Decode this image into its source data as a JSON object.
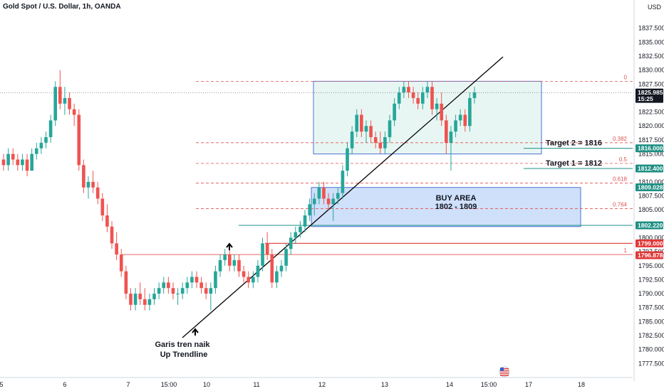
{
  "title": "Gold Spot / U.S. Dollar, 1h, OANDA",
  "currency": "USD",
  "chart_data": {
    "type": "candlestick",
    "ylim": [
      1775,
      1840
    ],
    "y_ticks": [
      "1837.500",
      "1835.000",
      "1832.500",
      "1830.000",
      "1827.500",
      "1822.500",
      "1820.000",
      "1817.500",
      "1815.000",
      "1810.000",
      "1807.500",
      "1805.000",
      "1800.000",
      "1797.500",
      "1795.000",
      "1792.500",
      "1790.000",
      "1787.500",
      "1785.000",
      "1782.500",
      "1780.000",
      "1777.500"
    ],
    "x_ticks": [
      "5",
      "6",
      "7",
      "15:00",
      "10",
      "11",
      "12",
      "13",
      "14",
      "15:00",
      "17",
      "18"
    ],
    "current_price": {
      "value": "1825.985",
      "time": "15:25"
    },
    "candles": [
      [
        1814,
        1815,
        1812,
        1813
      ],
      [
        1813,
        1816,
        1812,
        1815
      ],
      [
        1815,
        1816,
        1813,
        1814
      ],
      [
        1814,
        1815,
        1812,
        1813
      ],
      [
        1813,
        1815,
        1812,
        1814
      ],
      [
        1814,
        1815,
        1811,
        1812
      ],
      [
        1812,
        1816,
        1812,
        1815
      ],
      [
        1815,
        1817,
        1814,
        1816
      ],
      [
        1816,
        1818,
        1815,
        1817
      ],
      [
        1817,
        1819,
        1816,
        1818
      ],
      [
        1818,
        1822,
        1817,
        1821
      ],
      [
        1821,
        1828,
        1820,
        1827
      ],
      [
        1827,
        1830,
        1823,
        1824
      ],
      [
        1824,
        1827,
        1822,
        1825
      ],
      [
        1825,
        1826,
        1822,
        1823
      ],
      [
        1823,
        1824,
        1820,
        1822
      ],
      [
        1822,
        1823,
        1812,
        1813
      ],
      [
        1813,
        1814,
        1808,
        1809
      ],
      [
        1809,
        1811,
        1807,
        1810
      ],
      [
        1810,
        1812,
        1808,
        1809
      ],
      [
        1809,
        1810,
        1806,
        1807
      ],
      [
        1807,
        1808,
        1803,
        1804
      ],
      [
        1804,
        1806,
        1801,
        1802
      ],
      [
        1802,
        1803,
        1798,
        1799
      ],
      [
        1799,
        1801,
        1796,
        1797
      ],
      [
        1797,
        1798,
        1793,
        1794
      ],
      [
        1794,
        1795,
        1789,
        1790
      ],
      [
        1790,
        1791,
        1787,
        1788
      ],
      [
        1788,
        1791,
        1787,
        1790
      ],
      [
        1790,
        1792,
        1788,
        1789
      ],
      [
        1789,
        1791,
        1787,
        1788
      ],
      [
        1788,
        1790,
        1787,
        1789
      ],
      [
        1789,
        1791,
        1788,
        1790
      ],
      [
        1790,
        1792,
        1789,
        1791
      ],
      [
        1791,
        1793,
        1790,
        1792
      ],
      [
        1792,
        1793,
        1790,
        1791
      ],
      [
        1791,
        1792,
        1789,
        1790
      ],
      [
        1790,
        1791,
        1788,
        1790
      ],
      [
        1790,
        1792,
        1789,
        1791
      ],
      [
        1791,
        1793,
        1790,
        1792
      ],
      [
        1792,
        1794,
        1791,
        1793
      ],
      [
        1793,
        1794,
        1791,
        1792
      ],
      [
        1792,
        1793,
        1790,
        1791
      ],
      [
        1791,
        1792,
        1789,
        1790
      ],
      [
        1790,
        1792,
        1787,
        1791
      ],
      [
        1791,
        1795,
        1790,
        1794
      ],
      [
        1794,
        1797,
        1793,
        1796
      ],
      [
        1796,
        1798,
        1795,
        1797
      ],
      [
        1797,
        1798,
        1794,
        1795
      ],
      [
        1795,
        1797,
        1794,
        1796
      ],
      [
        1796,
        1797,
        1793,
        1794
      ],
      [
        1794,
        1795,
        1792,
        1793
      ],
      [
        1793,
        1794,
        1791,
        1792
      ],
      [
        1792,
        1794,
        1791,
        1793
      ],
      [
        1793,
        1796,
        1792,
        1795
      ],
      [
        1795,
        1800,
        1794,
        1799
      ],
      [
        1799,
        1801,
        1796,
        1797
      ],
      [
        1797,
        1798,
        1791,
        1792
      ],
      [
        1792,
        1795,
        1791,
        1794
      ],
      [
        1794,
        1796,
        1793,
        1795
      ],
      [
        1795,
        1799,
        1794,
        1798
      ],
      [
        1798,
        1801,
        1797,
        1800
      ],
      [
        1800,
        1802,
        1799,
        1801
      ],
      [
        1801,
        1803,
        1800,
        1802
      ],
      [
        1802,
        1805,
        1801,
        1804
      ],
      [
        1804,
        1807,
        1803,
        1806
      ],
      [
        1806,
        1808,
        1804,
        1807
      ],
      [
        1807,
        1810,
        1806,
        1809
      ],
      [
        1809,
        1810,
        1806,
        1807
      ],
      [
        1807,
        1808,
        1805,
        1806
      ],
      [
        1806,
        1808,
        1803,
        1807
      ],
      [
        1807,
        1809,
        1806,
        1808
      ],
      [
        1808,
        1813,
        1807,
        1812
      ],
      [
        1812,
        1817,
        1811,
        1816
      ],
      [
        1816,
        1820,
        1815,
        1819
      ],
      [
        1819,
        1823,
        1818,
        1822
      ],
      [
        1822,
        1823,
        1818,
        1819
      ],
      [
        1819,
        1821,
        1817,
        1820
      ],
      [
        1820,
        1821,
        1817,
        1818
      ],
      [
        1818,
        1819,
        1816,
        1817
      ],
      [
        1817,
        1819,
        1815,
        1816
      ],
      [
        1816,
        1819,
        1815,
        1818
      ],
      [
        1818,
        1822,
        1817,
        1821
      ],
      [
        1821,
        1825,
        1820,
        1824
      ],
      [
        1824,
        1827,
        1823,
        1826
      ],
      [
        1826,
        1828,
        1825,
        1827
      ],
      [
        1827,
        1828,
        1825,
        1826
      ],
      [
        1826,
        1827,
        1824,
        1825
      ],
      [
        1825,
        1826,
        1823,
        1824
      ],
      [
        1824,
        1827,
        1823,
        1826
      ],
      [
        1826,
        1828,
        1825,
        1827
      ],
      [
        1827,
        1828,
        1822,
        1823
      ],
      [
        1823,
        1825,
        1821,
        1824
      ],
      [
        1824,
        1826,
        1820,
        1821
      ],
      [
        1821,
        1822,
        1815,
        1817
      ],
      [
        1817,
        1820,
        1812,
        1819
      ],
      [
        1819,
        1822,
        1818,
        1821
      ],
      [
        1821,
        1823,
        1820,
        1822
      ],
      [
        1822,
        1823,
        1819,
        1820
      ],
      [
        1820,
        1826,
        1819,
        1825
      ],
      [
        1825,
        1827,
        1824,
        1826
      ]
    ],
    "annotations": [
      {
        "text": "Garis tren naik"
      },
      {
        "text": "Up Trendline"
      },
      {
        "text": "Target 2 = 1816"
      },
      {
        "text": "Target 1 = 1812"
      },
      {
        "text": "BUY AREA"
      },
      {
        "text": "1802 - 1809"
      }
    ],
    "fib_levels": [
      {
        "label": "0",
        "price": 1828.0
      },
      {
        "label": "0.382",
        "price": 1817.0
      },
      {
        "label": "0.5",
        "price": 1813.3
      },
      {
        "label": "0.618",
        "price": 1809.8
      },
      {
        "label": "0.764",
        "price": 1805.2
      },
      {
        "label": "1",
        "price": 1797.0
      }
    ],
    "price_tags": [
      {
        "label": "1825.985",
        "price": 1825.985,
        "color": "#131722"
      },
      {
        "label": "1816.000",
        "price": 1816.0,
        "color": "#1e8f84"
      },
      {
        "label": "1812.400",
        "price": 1812.4,
        "color": "#1e8f84"
      },
      {
        "label": "1809.028",
        "price": 1809.028,
        "color": "#1e8f84"
      },
      {
        "label": "1802.220",
        "price": 1802.22,
        "color": "#1e8f84"
      },
      {
        "label": "1799.000",
        "price": 1799.0,
        "color": "#e03636"
      },
      {
        "label": "1796.878",
        "price": 1796.878,
        "color": "#e03636"
      }
    ],
    "colors": {
      "up": "#26a69a",
      "down": "#ef5350",
      "fib": "#e05252",
      "zone_top_fill": "#e8f6f3",
      "zone_top_stroke": "#4a73d6",
      "zone_buy_fill": "#cfe0fa",
      "zone_buy_stroke": "#4a73d6"
    }
  }
}
